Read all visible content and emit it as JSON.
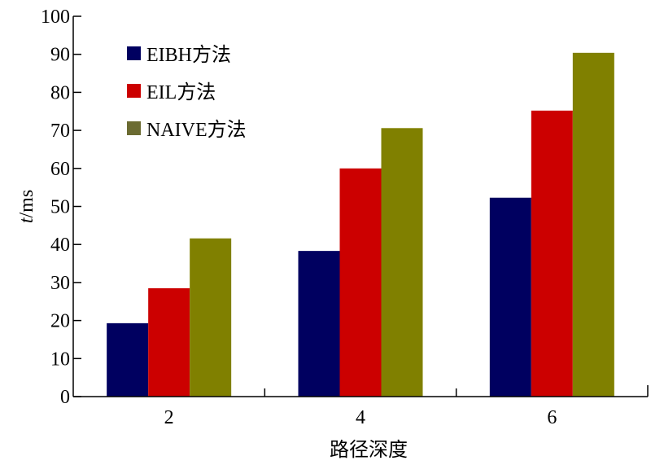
{
  "chart_data": {
    "type": "bar",
    "categories": [
      "2",
      "4",
      "6"
    ],
    "series": [
      {
        "name": "EIBH方法",
        "values": [
          19.3,
          38.3,
          52.3
        ],
        "color": "#000060"
      },
      {
        "name": "EIL方法",
        "values": [
          28.5,
          60.0,
          75.2
        ],
        "color": "#cc0000"
      },
      {
        "name": "NAIVE方法",
        "values": [
          41.6,
          70.6,
          90.4
        ],
        "color": "#808000"
      }
    ],
    "legend_swatch_colors": [
      "#000060",
      "#cc0000",
      "#6b6b32"
    ],
    "xlabel": "路径深度",
    "ylabel_italic": "t",
    "ylabel_rest": "/ms",
    "ylim": [
      0,
      100
    ],
    "yticks": [
      0,
      10,
      20,
      30,
      40,
      50,
      60,
      70,
      80,
      90,
      100
    ],
    "grid": false,
    "legend_position": "top-left"
  }
}
